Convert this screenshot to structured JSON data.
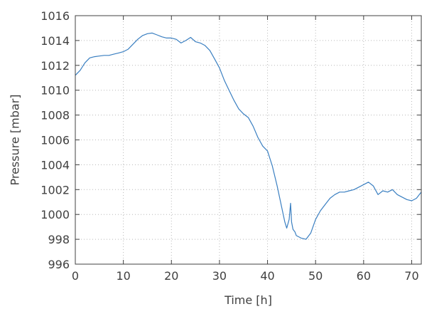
{
  "chart_data": {
    "type": "line",
    "xlabel": "Time [h]",
    "ylabel": "Pressure [mbar]",
    "xlim": [
      0,
      72
    ],
    "ylim": [
      996,
      1016
    ],
    "xticks": [
      0,
      10,
      20,
      30,
      40,
      50,
      60,
      70
    ],
    "yticks": [
      996,
      998,
      1000,
      1002,
      1004,
      1006,
      1008,
      1010,
      1012,
      1014,
      1016
    ],
    "grid": true,
    "legend": "none",
    "series_color": "#3a7fc1",
    "series": [
      {
        "x": [
          0,
          1,
          2,
          3,
          4,
          5,
          6,
          7,
          8,
          9,
          10,
          11,
          12,
          13,
          14,
          15,
          16,
          17,
          18,
          19,
          20,
          21,
          22,
          23,
          24,
          25,
          26,
          27,
          28,
          29,
          30,
          31,
          32,
          33,
          34,
          35,
          36,
          37,
          38,
          39,
          40,
          41,
          42,
          43,
          43.6,
          44,
          44.5,
          44.8,
          45,
          45.3,
          45.7,
          46,
          47,
          48,
          49,
          50,
          51,
          52,
          53,
          54,
          55,
          56,
          57,
          58,
          59,
          60,
          61,
          62,
          63,
          64,
          65,
          66,
          67,
          68,
          69,
          70,
          71,
          72
        ],
        "y": [
          1011.2,
          1011.6,
          1012.2,
          1012.6,
          1012.7,
          1012.75,
          1012.8,
          1012.8,
          1012.9,
          1013.0,
          1013.1,
          1013.3,
          1013.7,
          1014.1,
          1014.4,
          1014.55,
          1014.6,
          1014.45,
          1014.3,
          1014.2,
          1014.2,
          1014.1,
          1013.8,
          1014.0,
          1014.25,
          1013.9,
          1013.8,
          1013.6,
          1013.2,
          1012.5,
          1011.8,
          1010.8,
          1010.0,
          1009.2,
          1008.5,
          1008.1,
          1007.8,
          1007.1,
          1006.2,
          1005.5,
          1005.1,
          1003.9,
          1002.3,
          1000.5,
          999.4,
          998.9,
          999.6,
          1000.9,
          999.4,
          998.8,
          998.6,
          998.3,
          998.1,
          998.0,
          998.5,
          999.6,
          1000.3,
          1000.8,
          1001.3,
          1001.6,
          1001.8,
          1001.8,
          1001.9,
          1002.0,
          1002.2,
          1002.4,
          1002.6,
          1002.3,
          1001.6,
          1001.9,
          1001.8,
          1002.0,
          1001.6,
          1001.4,
          1001.2,
          1001.1,
          1001.3,
          1001.8
        ]
      }
    ]
  }
}
